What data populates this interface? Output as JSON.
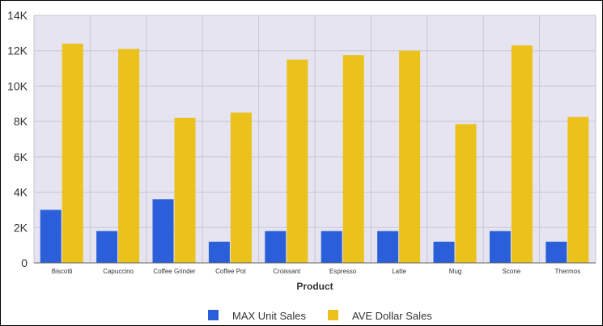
{
  "chart_data": {
    "type": "bar",
    "title": "",
    "xlabel": "Product",
    "ylabel": "",
    "ylim": [
      0,
      14000
    ],
    "yticks": [
      {
        "value": 0,
        "label": "0"
      },
      {
        "value": 2000,
        "label": "2K"
      },
      {
        "value": 4000,
        "label": "4K"
      },
      {
        "value": 6000,
        "label": "6K"
      },
      {
        "value": 8000,
        "label": "8K"
      },
      {
        "value": 10000,
        "label": "10K"
      },
      {
        "value": 12000,
        "label": "12K"
      },
      {
        "value": 14000,
        "label": "14K"
      }
    ],
    "grid": true,
    "legend_position": "bottom",
    "categories": [
      "Biscotti",
      "Capuccino",
      "Coffee Grinder",
      "Coffee Pot",
      "Croissant",
      "Espresso",
      "Latte",
      "Mug",
      "Scone",
      "Thermos"
    ],
    "series": [
      {
        "name": "MAX Unit Sales",
        "color": "#2b5fd9",
        "values": [
          3000,
          1800,
          3600,
          1200,
          1800,
          1800,
          1800,
          1200,
          1800,
          1200
        ]
      },
      {
        "name": "AVE Dollar Sales",
        "color": "#ebc11b",
        "values": [
          12400,
          12100,
          8200,
          8500,
          11500,
          11750,
          12000,
          7850,
          12300,
          8250
        ]
      }
    ],
    "plot_background": "#e6e4f0",
    "grid_color": "#c9c6d6"
  }
}
